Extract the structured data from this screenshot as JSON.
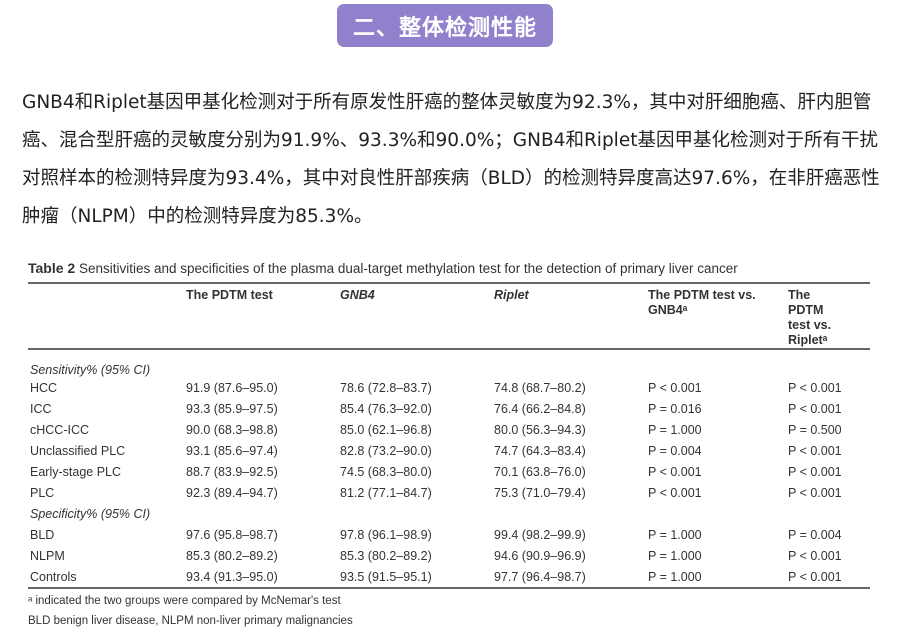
{
  "badge": {
    "title": "二、整体检测性能",
    "color": "#9180cc"
  },
  "paragraph": "GNB4和Riplet基因甲基化检测对于所有原发性肝癌的整体灵敏度为92.3%，其中对肝细胞癌、肝内胆管癌、混合型肝癌的灵敏度分别为91.9%、93.3%和90.0%；GNB4和Riplet基因甲基化检测对于所有干扰对照样本的检测特异度为93.4%，其中对良性肝部疾病（BLD）的检测特异度高达97.6%，在非肝癌恶性肿瘤（NLPM）中的检测特异度为85.3%。",
  "table": {
    "label": "Table 2",
    "caption": "Sensitivities and specificities of the plasma dual-target methylation test for the detection of primary liver cancer",
    "headers": [
      "",
      "The PDTM test",
      "GNB4",
      "Riplet",
      "The PDTM test vs. GNB4ᵃ",
      "The PDTM test vs. Ripletᵃ"
    ],
    "sections": [
      {
        "title": "Sensitivity% (95% CI)",
        "rows": [
          [
            "HCC",
            "91.9 (87.6–95.0)",
            "78.6 (72.8–83.7)",
            "74.8 (68.7–80.2)",
            "P < 0.001",
            "P < 0.001"
          ],
          [
            "ICC",
            "93.3 (85.9–97.5)",
            "85.4 (76.3–92.0)",
            "76.4 (66.2–84.8)",
            "P = 0.016",
            "P < 0.001"
          ],
          [
            "cHCC-ICC",
            "90.0 (68.3–98.8)",
            "85.0 (62.1–96.8)",
            "80.0 (56.3–94.3)",
            "P = 1.000",
            "P = 0.500"
          ],
          [
            "Unclassified PLC",
            "93.1 (85.6–97.4)",
            "82.8 (73.2–90.0)",
            "74.7 (64.3–83.4)",
            "P = 0.004",
            "P < 0.001"
          ],
          [
            "Early-stage PLC",
            "88.7 (83.9–92.5)",
            "74.5 (68.3–80.0)",
            "70.1 (63.8–76.0)",
            "P < 0.001",
            "P < 0.001"
          ],
          [
            "PLC",
            "92.3 (89.4–94.7)",
            "81.2 (77.1–84.7)",
            "75.3 (71.0–79.4)",
            "P < 0.001",
            "P < 0.001"
          ]
        ]
      },
      {
        "title": "Specificity% (95% CI)",
        "rows": [
          [
            "BLD",
            "97.6 (95.8–98.7)",
            "97.8 (96.1–98.9)",
            "99.4 (98.2–99.9)",
            "P = 1.000",
            "P = 0.004"
          ],
          [
            "NLPM",
            "85.3 (80.2–89.2)",
            "85.3 (80.2–89.2)",
            "94.6 (90.9–96.9)",
            "P = 1.000",
            "P < 0.001"
          ],
          [
            "Controls",
            "93.4 (91.3–95.0)",
            "93.5 (91.5–95.1)",
            "97.7 (96.4–98.7)",
            "P = 1.000",
            "P < 0.001"
          ]
        ]
      }
    ],
    "footnotes": [
      "ᵃ indicated the two groups were compared by McNemar's test",
      "BLD benign liver disease, NLPM non-liver primary malignancies"
    ]
  }
}
